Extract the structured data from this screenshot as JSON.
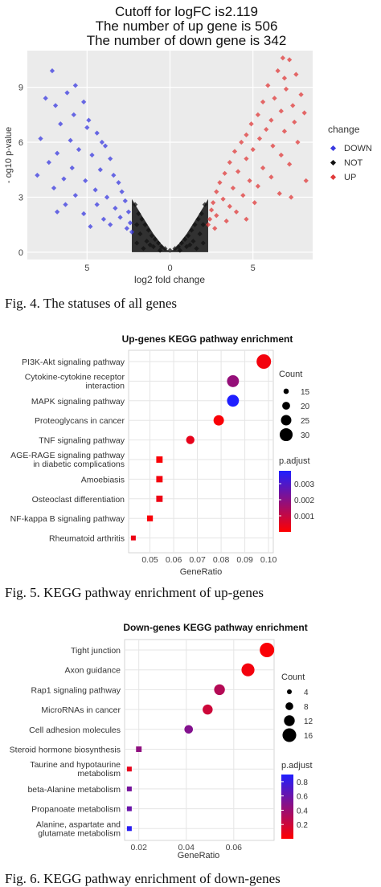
{
  "figures": [
    {
      "caption": "Fig. 4. The statuses of all genes"
    },
    {
      "caption": "Fig. 5. KEGG pathway enrichment of up-genes"
    },
    {
      "caption": "Fig. 6. KEGG pathway enrichment of down-genes"
    }
  ],
  "chart_data": [
    {
      "type": "scatter",
      "title_lines": [
        "Cutoff for logFC is2.119",
        "The number of up gene is 506",
        "The number of down gene is 342"
      ],
      "xlabel": "log2 fold change",
      "ylabel": "- og10 p-value",
      "xlim": [
        -8.6,
        8.6
      ],
      "ylim": [
        -0.4,
        11
      ],
      "xticks": [
        -5,
        0,
        5
      ],
      "xtick_labels": [
        "5",
        "0",
        "5"
      ],
      "yticks": [
        0,
        3,
        6,
        9
      ],
      "grid": true,
      "legend": {
        "title": "change",
        "position": "right"
      },
      "colors": {
        "DOWN": "#3a3ae0",
        "NOT": "#111111",
        "UP": "#e03a3a",
        "panel": "#ebebeb"
      },
      "series": [
        {
          "name": "DOWN",
          "points": [
            [
              -7.1,
              9.9
            ],
            [
              -6.9,
              8.0
            ],
            [
              -5.7,
              9.1
            ],
            [
              -6.2,
              8.7
            ],
            [
              -7.5,
              8.4
            ],
            [
              -5.2,
              8.2
            ],
            [
              -5.8,
              7.5
            ],
            [
              -4.9,
              7.2
            ],
            [
              -6.6,
              7.0
            ],
            [
              -5.0,
              6.8
            ],
            [
              -4.4,
              6.5
            ],
            [
              -7.8,
              6.2
            ],
            [
              -4.1,
              6.0
            ],
            [
              -6.0,
              6.1
            ],
            [
              -3.9,
              5.8
            ],
            [
              -5.5,
              5.6
            ],
            [
              -6.8,
              5.4
            ],
            [
              -4.7,
              5.3
            ],
            [
              -3.6,
              5.1
            ],
            [
              -7.3,
              4.9
            ],
            [
              -5.9,
              4.6
            ],
            [
              -4.2,
              4.5
            ],
            [
              -8.0,
              4.2
            ],
            [
              -3.4,
              4.2
            ],
            [
              -6.4,
              4.0
            ],
            [
              -5.1,
              3.9
            ],
            [
              -3.1,
              3.8
            ],
            [
              -7.0,
              3.5
            ],
            [
              -4.5,
              3.4
            ],
            [
              -2.9,
              3.3
            ],
            [
              -5.7,
              3.1
            ],
            [
              -3.8,
              3.0
            ],
            [
              -2.7,
              2.8
            ],
            [
              -6.3,
              2.6
            ],
            [
              -4.4,
              2.6
            ],
            [
              -3.3,
              2.4
            ],
            [
              -2.5,
              2.2
            ],
            [
              -5.2,
              2.1
            ],
            [
              -3.0,
              1.9
            ],
            [
              -4.0,
              1.8
            ],
            [
              -2.4,
              1.6
            ],
            [
              -6.8,
              2.2
            ],
            [
              -3.6,
              1.5
            ],
            [
              -2.6,
              1.3
            ],
            [
              -4.8,
              1.4
            ],
            [
              -2.3,
              1.1
            ]
          ]
        },
        {
          "name": "NOT",
          "points": [
            [
              -2.1,
              2.6
            ],
            [
              -1.9,
              2.1
            ],
            [
              -1.7,
              1.8
            ],
            [
              -1.5,
              1.5
            ],
            [
              -1.3,
              1.2
            ],
            [
              -1.1,
              0.9
            ],
            [
              -0.9,
              0.7
            ],
            [
              -0.7,
              0.5
            ],
            [
              -0.5,
              0.3
            ],
            [
              -0.3,
              0.2
            ],
            [
              0.0,
              0.1
            ],
            [
              0.3,
              0.2
            ],
            [
              0.5,
              0.3
            ],
            [
              0.7,
              0.5
            ],
            [
              0.9,
              0.7
            ],
            [
              1.1,
              0.9
            ],
            [
              1.3,
              1.2
            ],
            [
              1.5,
              1.5
            ],
            [
              1.7,
              1.8
            ],
            [
              1.9,
              2.1
            ],
            [
              2.1,
              2.6
            ],
            [
              -1.8,
              1.0
            ],
            [
              -1.4,
              0.6
            ],
            [
              -1.0,
              0.3
            ],
            [
              -0.6,
              0.1
            ],
            [
              0.6,
              0.1
            ],
            [
              1.0,
              0.3
            ],
            [
              1.4,
              0.6
            ],
            [
              1.8,
              1.0
            ],
            [
              -2.0,
              0.5
            ],
            [
              2.0,
              0.5
            ],
            [
              -1.6,
              0.2
            ],
            [
              1.6,
              0.2
            ],
            [
              -2.0,
              1.5
            ],
            [
              2.0,
              1.5
            ],
            [
              -1.2,
              0.4
            ],
            [
              1.2,
              0.4
            ]
          ]
        },
        {
          "name": "UP",
          "points": [
            [
              6.8,
              10.6
            ],
            [
              7.2,
              10.5
            ],
            [
              6.5,
              9.9
            ],
            [
              7.6,
              9.7
            ],
            [
              6.9,
              9.5
            ],
            [
              5.9,
              9.1
            ],
            [
              7.0,
              8.9
            ],
            [
              7.9,
              8.6
            ],
            [
              6.3,
              8.4
            ],
            [
              5.6,
              8.2
            ],
            [
              7.4,
              8.0
            ],
            [
              8.1,
              7.6
            ],
            [
              6.7,
              7.7
            ],
            [
              5.3,
              7.5
            ],
            [
              6.1,
              7.2
            ],
            [
              7.5,
              7.1
            ],
            [
              4.9,
              7.0
            ],
            [
              5.8,
              6.7
            ],
            [
              6.9,
              6.6
            ],
            [
              4.6,
              6.4
            ],
            [
              5.4,
              6.2
            ],
            [
              7.7,
              6.0
            ],
            [
              4.3,
              6.0
            ],
            [
              6.2,
              5.8
            ],
            [
              5.0,
              5.6
            ],
            [
              3.9,
              5.5
            ],
            [
              6.7,
              5.3
            ],
            [
              4.6,
              5.1
            ],
            [
              3.6,
              4.9
            ],
            [
              7.2,
              4.8
            ],
            [
              5.6,
              4.6
            ],
            [
              4.1,
              4.4
            ],
            [
              3.3,
              4.3
            ],
            [
              6.1,
              4.1
            ],
            [
              4.8,
              3.9
            ],
            [
              3.0,
              3.8
            ],
            [
              8.2,
              3.9
            ],
            [
              5.3,
              3.6
            ],
            [
              3.8,
              3.5
            ],
            [
              2.8,
              3.3
            ],
            [
              6.6,
              3.2
            ],
            [
              4.4,
              3.1
            ],
            [
              3.2,
              2.9
            ],
            [
              2.6,
              2.7
            ],
            [
              5.1,
              2.7
            ],
            [
              3.6,
              2.5
            ],
            [
              2.5,
              2.3
            ],
            [
              4.0,
              2.2
            ],
            [
              2.8,
              2.0
            ],
            [
              2.4,
              1.8
            ],
            [
              3.4,
              1.7
            ],
            [
              2.3,
              1.5
            ],
            [
              4.6,
              1.8
            ],
            [
              2.7,
              1.3
            ],
            [
              7.3,
              3.0
            ]
          ]
        }
      ]
    },
    {
      "type": "scatter",
      "title": "Up-genes KEGG pathway enrichment",
      "xlabel": "GeneRatio",
      "categories": [
        "PI3K-Akt signaling pathway",
        "Cytokine-cytokine receptor|interaction",
        "MAPK signaling pathway",
        "Proteoglycans in cancer",
        "TNF signaling pathway",
        "AGE-RAGE signaling pathway|in diabetic complications",
        "Amoebiasis",
        "Osteoclast differentiation",
        "NF-kappa B signaling pathway",
        "Rheumatoid arthritis"
      ],
      "x": [
        0.098,
        0.085,
        0.085,
        0.079,
        0.067,
        0.054,
        0.054,
        0.054,
        0.05,
        0.043
      ],
      "count": [
        33,
        28,
        28,
        25,
        21,
        17,
        17,
        17,
        16,
        14
      ],
      "p_adjust": [
        0.0002,
        0.0018,
        0.0038,
        0.0001,
        0.0004,
        0.0001,
        0.0002,
        0.0003,
        0.0001,
        0.0003
      ],
      "xlim": [
        0.041,
        0.102
      ],
      "xticks": [
        0.05,
        0.06,
        0.07,
        0.08,
        0.09,
        0.1
      ],
      "xtick_labels": [
        "0.05",
        "0.06",
        "0.07",
        "0.08",
        "0.09",
        "0.10"
      ],
      "grid": true,
      "size_legend": {
        "title": "Count",
        "values": [
          15,
          20,
          25,
          30
        ],
        "labels": [
          "15",
          "20",
          "25",
          "30"
        ],
        "position": "right"
      },
      "color_legend": {
        "title": "p.adjust",
        "min": 0.0,
        "max": 0.0038,
        "ticks": [
          0.001,
          0.002,
          0.003
        ],
        "labels": [
          "0.001",
          "0.002",
          "0.003"
        ],
        "low_color": "#ff0000",
        "high_color": "#1f1fff"
      }
    },
    {
      "type": "scatter",
      "title": "Down-genes KEGG pathway enrichment",
      "xlabel": "GeneRatio",
      "categories": [
        "Tight junction",
        "Axon guidance",
        "Rap1 signaling pathway",
        "MicroRNAs in cancer",
        "Cell adhesion molecules",
        "Steroid hormone biosynthesis",
        "Taurine and hypotaurine|metabolism",
        "beta-Alanine metabolism",
        "Propanoate metabolism",
        "Alanine, aspartate and|glutamate metabolism"
      ],
      "x": [
        0.074,
        0.066,
        0.054,
        0.049,
        0.041,
        0.02,
        0.016,
        0.016,
        0.016,
        0.016
      ],
      "count": [
        17,
        15,
        12,
        11,
        9,
        5,
        4,
        4,
        4,
        4
      ],
      "p_adjust": [
        0.02,
        0.05,
        0.3,
        0.2,
        0.5,
        0.45,
        0.1,
        0.55,
        0.6,
        0.85
      ],
      "xlim": [
        0.014,
        0.077
      ],
      "xticks": [
        0.02,
        0.04,
        0.06
      ],
      "xtick_labels": [
        "0.02",
        "0.04",
        "0.06"
      ],
      "grid": true,
      "size_legend": {
        "title": "Count",
        "values": [
          4,
          8,
          12,
          16
        ],
        "labels": [
          "4",
          "8",
          "12",
          "16"
        ],
        "position": "right"
      },
      "color_legend": {
        "title": "p.adjust",
        "min": 0.0,
        "max": 0.9,
        "ticks": [
          0.2,
          0.4,
          0.6,
          0.8
        ],
        "labels": [
          "0.2",
          "0.4",
          "0.6",
          "0.8"
        ],
        "low_color": "#ff0000",
        "high_color": "#1f1fff"
      }
    }
  ]
}
